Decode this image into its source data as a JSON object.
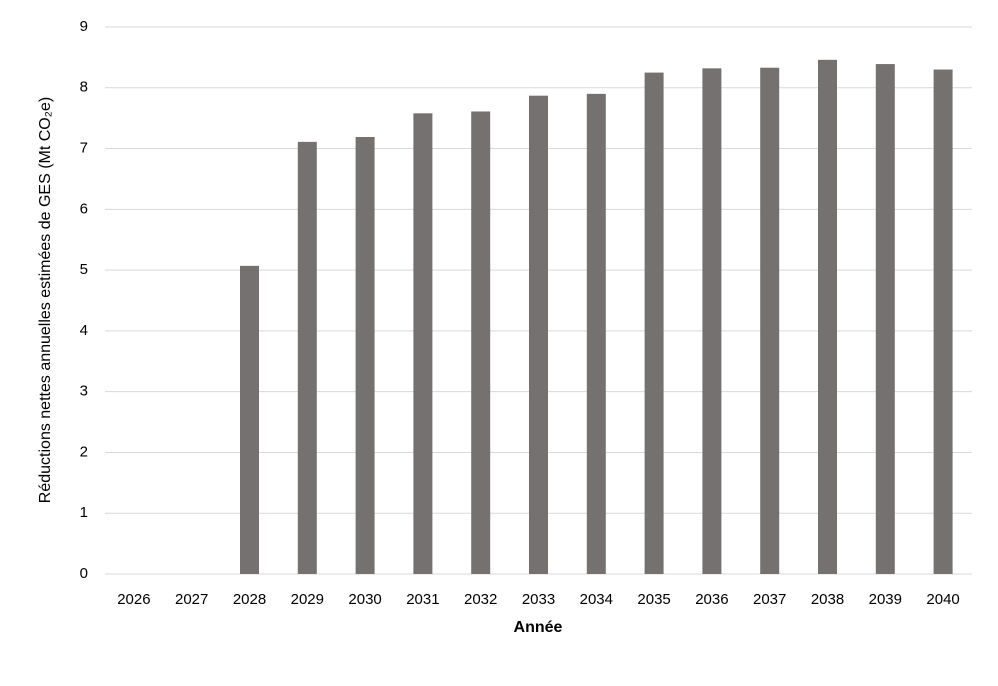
{
  "chart_data": {
    "type": "bar",
    "xlabel": "Année",
    "ylabel": "Réductions nettes annuelles estimées de GES (Mt CO₂e)",
    "categories": [
      "2026",
      "2027",
      "2028",
      "2029",
      "2030",
      "2031",
      "2032",
      "2033",
      "2034",
      "2035",
      "2036",
      "2037",
      "2038",
      "2039",
      "2040"
    ],
    "values": [
      0,
      0,
      5.07,
      7.11,
      7.19,
      7.58,
      7.61,
      7.87,
      7.9,
      8.25,
      8.32,
      8.33,
      8.46,
      8.39,
      8.3
    ],
    "color": "#767171",
    "ylim": [
      0,
      9
    ],
    "yticks": [
      0,
      1,
      2,
      3,
      4,
      5,
      6,
      7,
      8,
      9
    ],
    "grid": true
  }
}
